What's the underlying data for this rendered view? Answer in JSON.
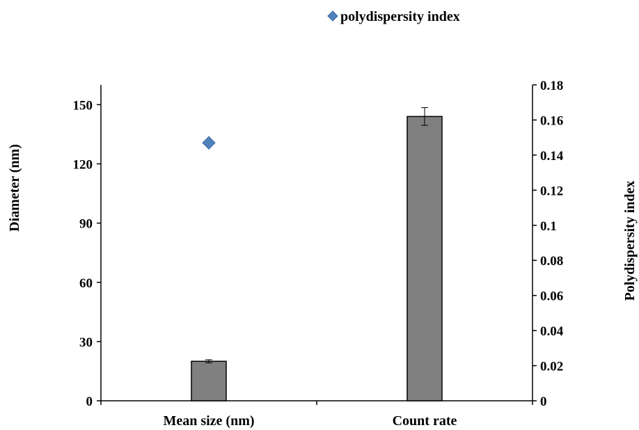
{
  "chart_data": {
    "type": "bar",
    "categories": [
      "Mean size (nm)",
      "Count rate"
    ],
    "series": [
      {
        "type": "bar",
        "axis": "left",
        "values": [
          20,
          144
        ],
        "error": [
          0.8,
          4.5
        ],
        "color": "#808080"
      },
      {
        "name": "polydispersity index",
        "type": "scatter",
        "axis": "right",
        "points": [
          {
            "category": "Mean size (nm)",
            "value": 0.147
          }
        ],
        "color": "#4f81bd"
      }
    ],
    "ylabel": "Diameter (nm)",
    "ylabel_right": "Polydispersity index",
    "ylim": [
      0,
      160
    ],
    "yticks": [
      0,
      30,
      60,
      90,
      120,
      150
    ],
    "ylim_right": [
      0,
      0.18
    ],
    "yticks_right": [
      "0",
      "0.02",
      "0.04",
      "0.06",
      "0.08",
      "0.1",
      "0.12",
      "0.14",
      "0.16",
      "0.18"
    ],
    "legend": {
      "position": "top-right",
      "entries": [
        "polydispersity index"
      ]
    },
    "grid": false
  }
}
